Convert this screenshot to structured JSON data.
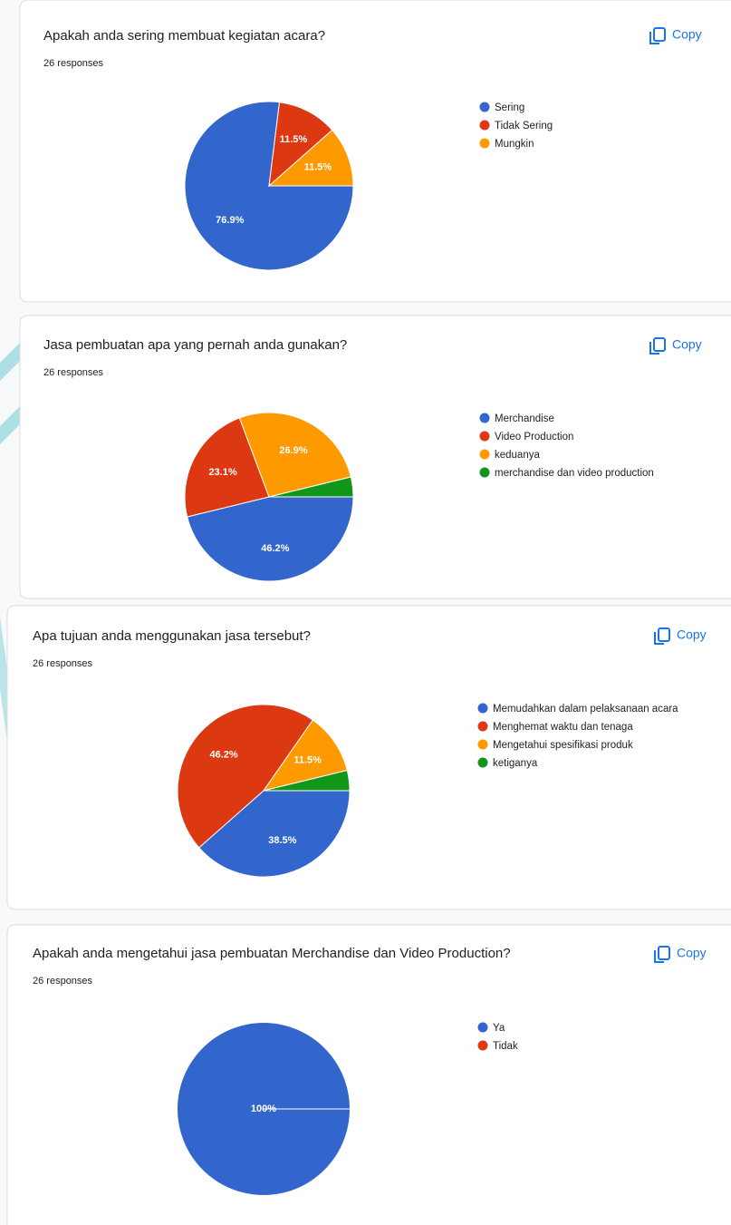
{
  "chart_data": [
    {
      "type": "pie",
      "title": "Apakah anda sering membuat kegiatan acara?",
      "subtitle": "26 responses",
      "button": "Copy",
      "categories": [
        "Sering",
        "Tidak Sering",
        "Mungkin"
      ],
      "values": [
        76.9,
        11.5,
        11.5
      ],
      "value_labels": [
        "76.9%",
        "11.5%",
        "11.5%"
      ],
      "colors": [
        "#3366cc",
        "#dc3912",
        "#ff9900"
      ]
    },
    {
      "type": "pie",
      "title": "Jasa pembuatan apa yang pernah anda gunakan?",
      "subtitle": "26 responses",
      "button": "Copy",
      "categories": [
        "Merchandise",
        "Video Production",
        "keduanya",
        "merchandise dan video production"
      ],
      "values": [
        46.2,
        23.1,
        26.9,
        3.8
      ],
      "value_labels": [
        "46.2%",
        "23.1%",
        "26.9%",
        null
      ],
      "colors": [
        "#3366cc",
        "#dc3912",
        "#ff9900",
        "#109618"
      ]
    },
    {
      "type": "pie",
      "title": "Apa tujuan anda menggunakan jasa tersebut?",
      "subtitle": "26 responses",
      "button": "Copy",
      "categories": [
        "Memudahkan dalam pelaksanaan acara",
        "Menghemat waktu dan tenaga",
        "Mengetahui spesifikasi produk",
        "ketiganya"
      ],
      "values": [
        38.5,
        46.2,
        11.5,
        3.8
      ],
      "value_labels": [
        "38.5%",
        "46.2%",
        "11.5%",
        null
      ],
      "colors": [
        "#3366cc",
        "#dc3912",
        "#ff9900",
        "#109618"
      ]
    },
    {
      "type": "pie",
      "title": "Apakah anda mengetahui jasa pembuatan Merchandise dan Video Production?",
      "subtitle": "26 responses",
      "button": "Copy",
      "categories": [
        "Ya",
        "Tidak"
      ],
      "values": [
        100,
        0
      ],
      "value_labels": [
        "100%",
        null
      ],
      "colors": [
        "#3366cc",
        "#dc3912"
      ]
    }
  ]
}
